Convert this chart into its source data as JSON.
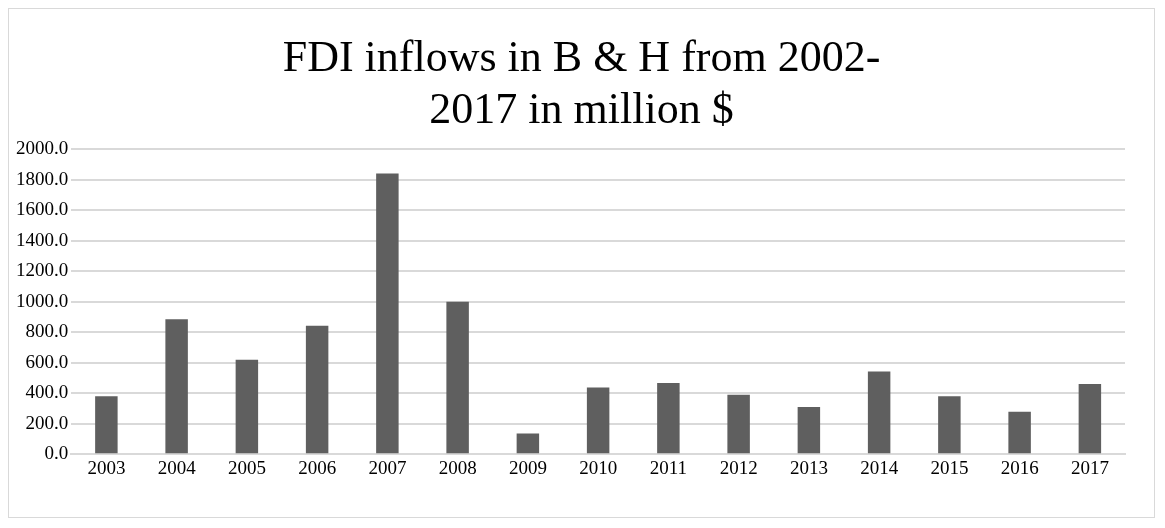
{
  "chart_data": {
    "type": "bar",
    "title": "FDI inflows in B & H from 2002-2017 in million $",
    "categories": [
      "2003",
      "2004",
      "2005",
      "2006",
      "2007",
      "2008",
      "2009",
      "2010",
      "2011",
      "2012",
      "2013",
      "2014",
      "2015",
      "2016",
      "2017"
    ],
    "values": [
      380,
      885,
      620,
      843,
      1842,
      1001,
      136,
      438,
      468,
      390,
      309,
      542,
      380,
      278,
      461
    ],
    "color": "#5f5f5f",
    "ylim": [
      0,
      2000
    ],
    "yticks": [
      {
        "value": 0,
        "label": "0.0"
      },
      {
        "value": 200,
        "label": "200.0"
      },
      {
        "value": 400,
        "label": "400.0"
      },
      {
        "value": 600,
        "label": "600.0"
      },
      {
        "value": 800,
        "label": "800.0"
      },
      {
        "value": 1000,
        "label": "1000.0"
      },
      {
        "value": 1200,
        "label": "1200.0"
      },
      {
        "value": 1400,
        "label": "1400.0"
      },
      {
        "value": 1600,
        "label": "1600.0"
      },
      {
        "value": 1800,
        "label": "1800.0"
      },
      {
        "value": 2000,
        "label": "2000.0"
      }
    ],
    "grid": "y",
    "legend": false
  }
}
